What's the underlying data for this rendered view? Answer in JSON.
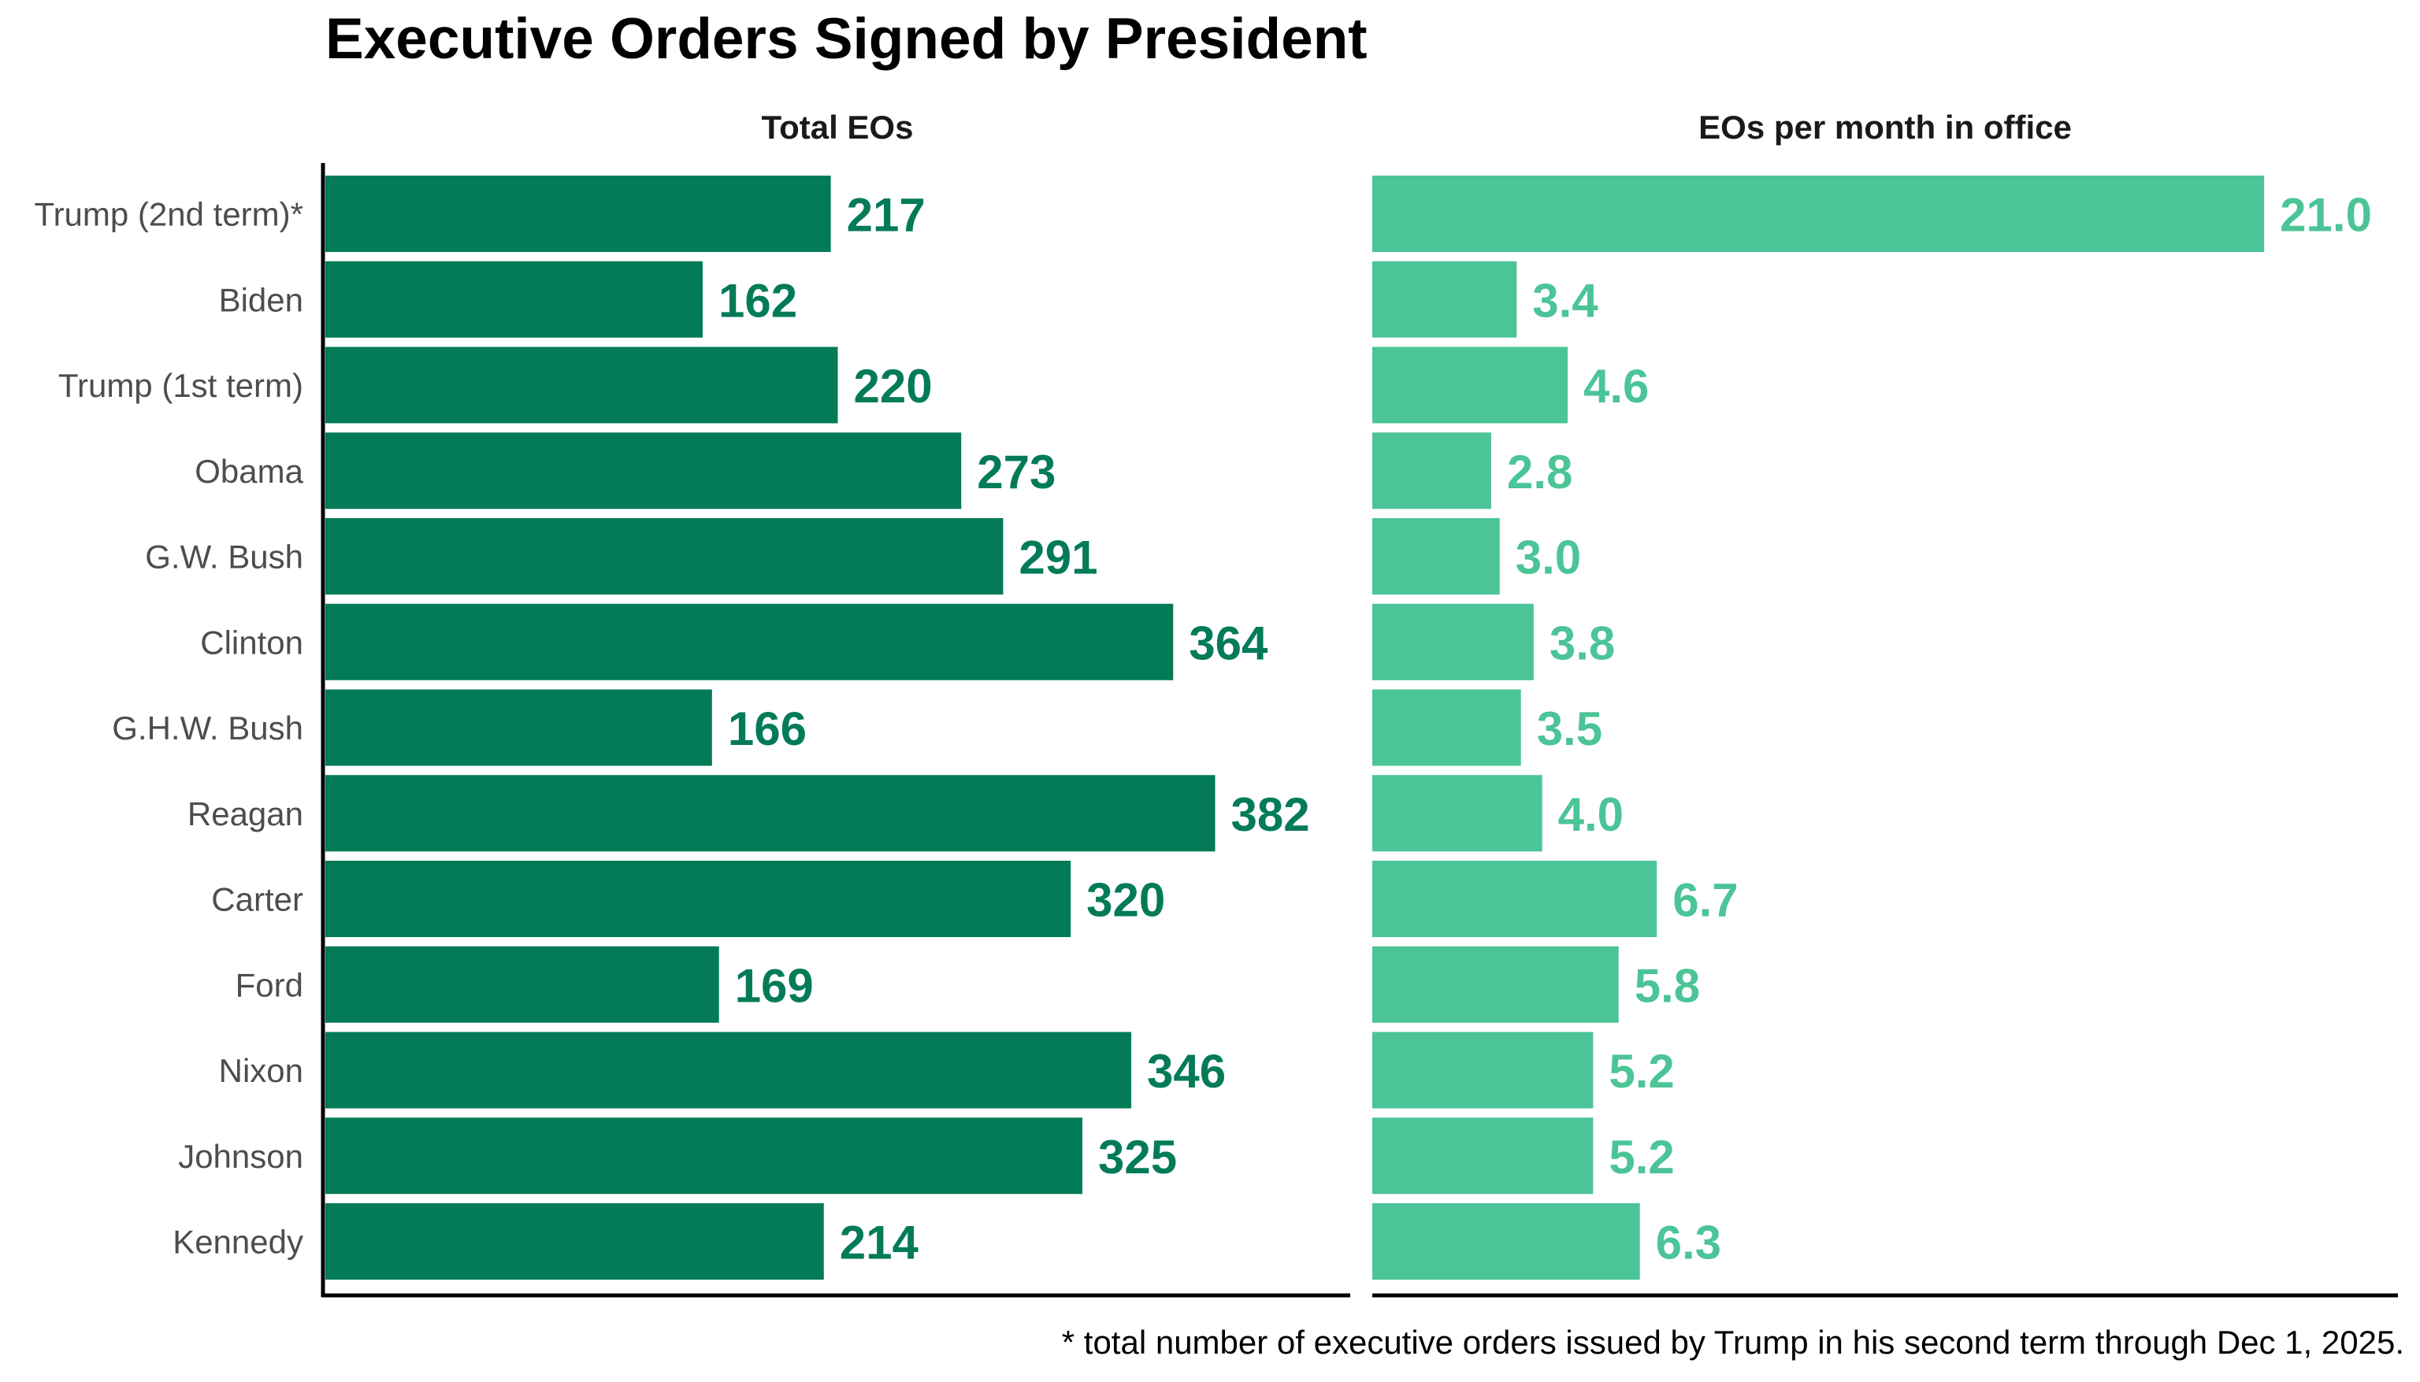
{
  "title": "Executive Orders Signed by President",
  "footnote": "* total number of executive orders issued by Trump in his second term through Dec 1, 2025.",
  "colors": {
    "total_bar": "#037b59",
    "rate_bar": "#4bc497",
    "axis": "#000000",
    "category_text": "#4d4d4d",
    "title_text": "#000000"
  },
  "chart_data": [
    {
      "type": "bar",
      "orientation": "horizontal",
      "title": "Total EOs",
      "xlabel": "",
      "ylabel": "",
      "grid": false,
      "xlim": [
        0,
        440
      ],
      "categories": [
        "Trump (2nd term)*",
        "Biden",
        "Trump (1st term)",
        "Obama",
        "G.W. Bush",
        "Clinton",
        "G.H.W. Bush",
        "Reagan",
        "Carter",
        "Ford",
        "Nixon",
        "Johnson",
        "Kennedy"
      ],
      "values": [
        217,
        162,
        220,
        273,
        291,
        364,
        166,
        382,
        320,
        169,
        346,
        325,
        214
      ],
      "value_labels": [
        "217",
        "162",
        "220",
        "273",
        "291",
        "364",
        "166",
        "382",
        "320",
        "169",
        "346",
        "325",
        "214"
      ]
    },
    {
      "type": "bar",
      "orientation": "horizontal",
      "title": "EOs per month in office",
      "xlabel": "",
      "ylabel": "",
      "grid": false,
      "xlim": [
        0,
        24.15
      ],
      "categories": [
        "Trump (2nd term)*",
        "Biden",
        "Trump (1st term)",
        "Obama",
        "G.W. Bush",
        "Clinton",
        "G.H.W. Bush",
        "Reagan",
        "Carter",
        "Ford",
        "Nixon",
        "Johnson",
        "Kennedy"
      ],
      "values": [
        21.0,
        3.4,
        4.6,
        2.8,
        3.0,
        3.8,
        3.5,
        4.0,
        6.7,
        5.8,
        5.2,
        5.2,
        6.3
      ],
      "value_labels": [
        "21.0",
        "3.4",
        "4.6",
        "2.8",
        "3.0",
        "3.8",
        "3.5",
        "4.0",
        "6.7",
        "5.8",
        "5.2",
        "5.2",
        "6.3"
      ]
    }
  ]
}
